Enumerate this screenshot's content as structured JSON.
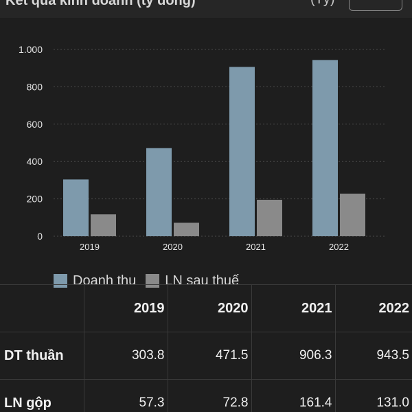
{
  "header": {
    "title": "Kết quả kinh doanh (tỷ đồng)",
    "suffix": "(Tỷ)"
  },
  "chart_data": {
    "type": "bar",
    "categories": [
      "2019",
      "2020",
      "2021",
      "2022"
    ],
    "series": [
      {
        "name": "Doanh thu",
        "values": [
          303.8,
          471.5,
          906.3,
          943.5
        ],
        "color": "#7e9aac"
      },
      {
        "name": "LN sau thuế",
        "values": [
          117,
          72,
          195,
          228
        ],
        "color": "#8a8a8a"
      }
    ],
    "ylim": [
      0,
      1000
    ],
    "yticks": [
      0,
      200,
      400,
      600,
      800,
      1000
    ],
    "ytick_labels": [
      "0",
      "200",
      "400",
      "600",
      "800",
      "1.000"
    ],
    "grid": true,
    "legend": "bottom-left",
    "title": "",
    "xlabel": "",
    "ylabel": ""
  },
  "table": {
    "columns": [
      "",
      "2019",
      "2020",
      "2021",
      "2022"
    ],
    "rows": [
      {
        "label": "DT thuần",
        "values": [
          "303.8",
          "471.5",
          "906.3",
          "943.5"
        ]
      },
      {
        "label": "LN gộp",
        "values": [
          "57.3",
          "72.8",
          "161.4",
          "131.0"
        ]
      }
    ]
  },
  "colors": {
    "background": "#1e1e1e",
    "grid": "#4a4a4a",
    "text": "#f0f0f0"
  }
}
